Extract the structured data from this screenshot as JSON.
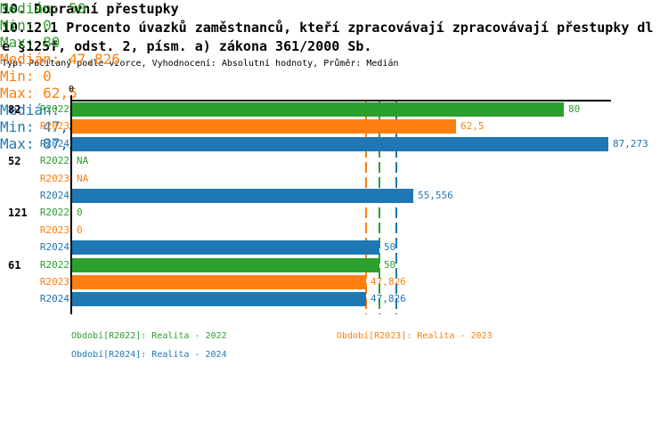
{
  "header": {
    "title": "10. Dopravní přestupky",
    "subtitle_line1": "10.12.1 Procento úvazků zaměstnanců, kteří zpracovávají zpracovávají přestupky dl",
    "subtitle_line2": "e §125f, odst. 2, písm. a) zákona 361/2000 Sb.",
    "meta": "Typ: Počítaný podle vzorce, Vyhodnocení: Absolutní hodnoty, Průměr: Medián"
  },
  "chart_data": {
    "type": "bar",
    "orientation": "horizontal",
    "title": "10.12.1 Procento úvazků zaměstnanců, kteří zpracovávají přestupky dle §125f, odst. 2, písm. a) zákona 361/2000 Sb.",
    "axis": {
      "tick_label": "0",
      "origin_value": 0,
      "x_max_value": 87.273
    },
    "grid": false,
    "series_colors": {
      "R2022": "#2ca02c",
      "R2023": "#ff7f0e",
      "R2024": "#1f77b4"
    },
    "groups": [
      {
        "label": "82",
        "bars": [
          {
            "series": "R2022",
            "value": 80,
            "display": "80"
          },
          {
            "series": "R2023",
            "value": 62.5,
            "display": "62,5"
          },
          {
            "series": "R2024",
            "value": 87.273,
            "display": "87,273"
          }
        ]
      },
      {
        "label": "52",
        "bars": [
          {
            "series": "R2022",
            "value": null,
            "display": "NA"
          },
          {
            "series": "R2023",
            "value": null,
            "display": "NA"
          },
          {
            "series": "R2024",
            "value": 55.556,
            "display": "55,556"
          }
        ]
      },
      {
        "label": "121",
        "bars": [
          {
            "series": "R2022",
            "value": 0,
            "display": "0"
          },
          {
            "series": "R2023",
            "value": 0,
            "display": "0"
          },
          {
            "series": "R2024",
            "value": 50,
            "display": "50"
          }
        ]
      },
      {
        "label": "61",
        "bars": [
          {
            "series": "R2022",
            "value": 50,
            "display": "50"
          },
          {
            "series": "R2023",
            "value": 47.826,
            "display": "47,826"
          },
          {
            "series": "R2024",
            "value": 47.826,
            "display": "47,826"
          }
        ]
      }
    ],
    "median_lines": [
      {
        "series": "R2022",
        "value": 50
      },
      {
        "series": "R2023",
        "value": 47.826
      },
      {
        "series": "R2024",
        "value": 52.778
      }
    ],
    "legend": [
      {
        "series": "R2022",
        "label": "Období[R2022]: Realita - 2022"
      },
      {
        "series": "R2023",
        "label": "Období[R2023]: Realita - 2023"
      },
      {
        "series": "R2024",
        "label": "Období[R2024]: Realita - 2024"
      }
    ],
    "stats": [
      {
        "series": "R2022",
        "median": "Medián: 50",
        "min": "Min: 0",
        "max": "Max: 80"
      },
      {
        "series": "R2023",
        "median": "Medián: 47,826",
        "min": "Min: 0",
        "max": "Max: 62,5"
      },
      {
        "series": "R2024",
        "median": "Medián: 52,778",
        "min": "Min: 47,826",
        "max": "Max: 87,273"
      }
    ]
  }
}
